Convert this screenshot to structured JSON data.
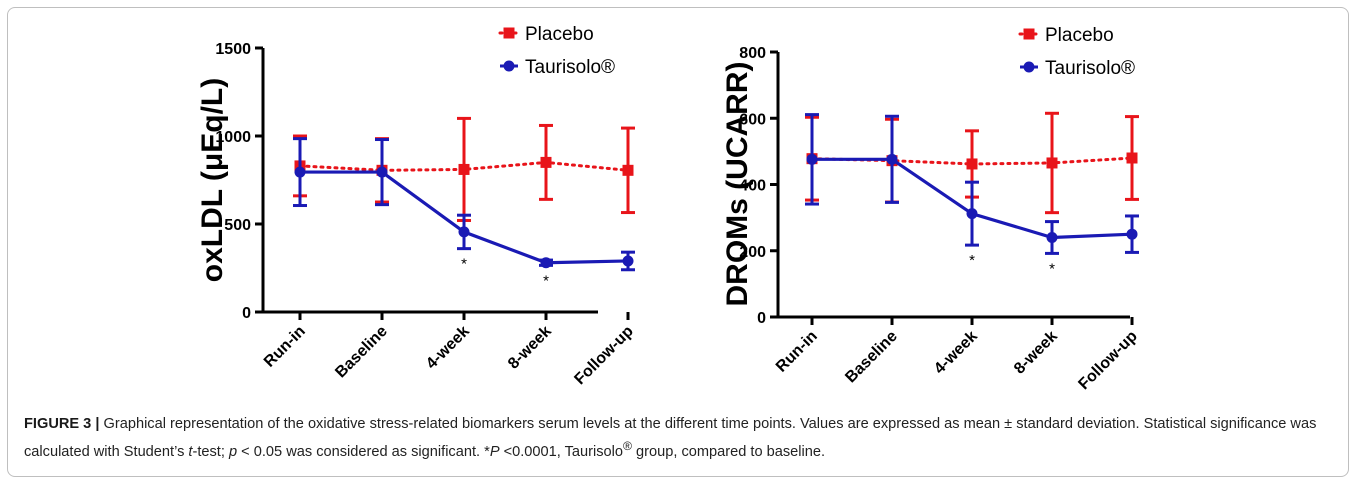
{
  "chart_data": [
    {
      "type": "line",
      "title": "",
      "xlabel": "",
      "ylabel": "oxLDL (μEq/L)",
      "ylim": [
        0,
        1500
      ],
      "yticks": [
        "0",
        "500",
        "1000",
        "1500"
      ],
      "ytick_values": [
        0,
        500,
        1000,
        1500
      ],
      "categories": [
        "Run-in",
        "Baseline",
        "4-week",
        "8-week",
        "Follow-up"
      ],
      "legend": "top-right",
      "series": [
        {
          "name": "Placebo",
          "color": "#e8141a",
          "line": "dotted",
          "marker": "square",
          "values": [
            830,
            805,
            810,
            850,
            805
          ],
          "errors": [
            170,
            180,
            290,
            210,
            240
          ]
        },
        {
          "name": "Taurisolo®",
          "color": "#1a1ab4",
          "line": "solid",
          "marker": "circle",
          "values": [
            795,
            795,
            455,
            280,
            290
          ],
          "errors": [
            190,
            185,
            95,
            15,
            50
          ]
        }
      ],
      "annotations": [
        {
          "category": "4-week",
          "text": "*"
        },
        {
          "category": "8-week",
          "text": "*"
        }
      ]
    },
    {
      "type": "line",
      "title": "",
      "xlabel": "",
      "ylabel": "DROMs (UCARR)",
      "ylim": [
        0,
        800
      ],
      "yticks": [
        "0",
        "200",
        "400",
        "600",
        "800"
      ],
      "ytick_values": [
        0,
        200,
        400,
        600,
        800
      ],
      "categories": [
        "Run-in",
        "Baseline",
        "4-week",
        "8-week",
        "Follow-up"
      ],
      "legend": "top-right",
      "series": [
        {
          "name": "Placebo",
          "color": "#e8141a",
          "line": "dotted",
          "marker": "square",
          "values": [
            478,
            472,
            462,
            465,
            480
          ],
          "errors": [
            125,
            125,
            100,
            150,
            125
          ]
        },
        {
          "name": "Taurisolo®",
          "color": "#1a1ab4",
          "line": "solid",
          "marker": "circle",
          "values": [
            476,
            476,
            312,
            240,
            250
          ],
          "errors": [
            135,
            130,
            95,
            48,
            55
          ]
        }
      ],
      "annotations": [
        {
          "category": "4-week",
          "text": "*"
        },
        {
          "category": "8-week",
          "text": "*"
        }
      ]
    }
  ],
  "caption": {
    "figure_label": "FIGURE 3 |",
    "part1": " Graphical representation of the oxidative stress-related biomarkers serum levels at the different time points. Values are expressed as mean ± standard deviation. Statistical significance was calculated with Student’s ",
    "t_italic": "t",
    "part2": "-test; ",
    "p_italic": "p",
    "part3": " < 0.05 was considered as significant. *",
    "P_italic": "P",
    "part4": " <0.0001, Taurisolo",
    "sup": "®",
    "part5": " group, compared to baseline."
  }
}
